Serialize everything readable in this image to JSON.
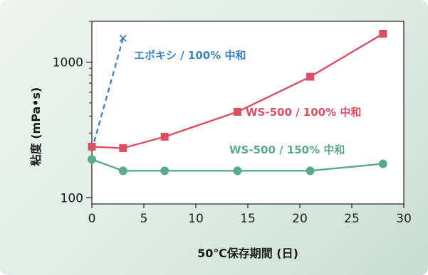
{
  "chart_data": {
    "type": "line",
    "xlabel": "50℃保存期間 (日)",
    "ylabel": "粘度 (mPa•s)",
    "xlim": [
      0,
      30
    ],
    "ylim": [
      90,
      2000
    ],
    "yscale": "log",
    "xticks": [
      0,
      5,
      10,
      15,
      20,
      25,
      30
    ],
    "yticks": [
      100,
      1000
    ],
    "yticks_labels": [
      "100",
      "1000"
    ],
    "grid": false,
    "series": [
      {
        "name": "エポキシ / 100% 中和",
        "color": "#3a85c4",
        "marker": "x",
        "linestyle": "dashed",
        "x": [
          0,
          3
        ],
        "y": [
          225,
          1500
        ]
      },
      {
        "name": "WS-500 / 100% 中和",
        "color": "#dc4f63",
        "marker": "square",
        "linestyle": "solid",
        "x": [
          0,
          3,
          7,
          14,
          21,
          28
        ],
        "y": [
          238,
          232,
          282,
          430,
          780,
          1620
        ]
      },
      {
        "name": "WS-500 / 150% 中和",
        "color": "#5aaa8c",
        "marker": "circle",
        "linestyle": "solid",
        "x": [
          0,
          3,
          7,
          14,
          21,
          28
        ],
        "y": [
          192,
          158,
          158,
          158,
          158,
          178
        ]
      }
    ]
  }
}
